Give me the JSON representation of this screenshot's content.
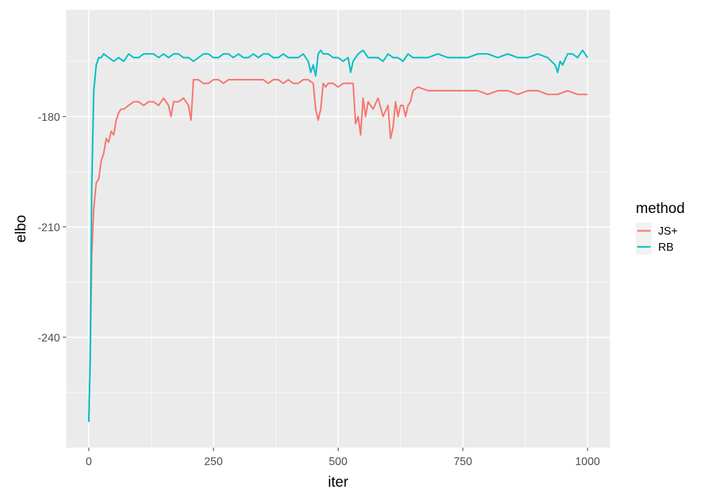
{
  "chart_data": {
    "type": "line",
    "xlabel": "iter",
    "ylabel": "elbo",
    "xlim": [
      -45,
      1045
    ],
    "ylim": [
      -270,
      -151
    ],
    "x_ticks": [
      0,
      250,
      500,
      750,
      1000
    ],
    "x_tick_labels": [
      "0",
      "250",
      "500",
      "750",
      "1000"
    ],
    "y_ticks": [
      -180,
      -210,
      -240
    ],
    "y_tick_labels": [
      "-180",
      "-210",
      "-240"
    ],
    "grid": true,
    "legend": {
      "title": "method",
      "position": "right"
    },
    "series": [
      {
        "name": "JS+",
        "color": "#F8766D",
        "x": [
          0,
          3,
          6,
          10,
          15,
          20,
          25,
          30,
          35,
          40,
          45,
          50,
          55,
          60,
          65,
          70,
          80,
          90,
          100,
          110,
          120,
          130,
          140,
          150,
          160,
          165,
          170,
          180,
          190,
          200,
          205,
          210,
          215,
          220,
          230,
          240,
          250,
          260,
          270,
          280,
          290,
          300,
          310,
          320,
          330,
          340,
          350,
          360,
          370,
          380,
          390,
          400,
          410,
          420,
          430,
          440,
          450,
          455,
          460,
          465,
          470,
          475,
          480,
          490,
          500,
          510,
          520,
          530,
          535,
          540,
          545,
          550,
          555,
          560,
          570,
          580,
          590,
          600,
          605,
          610,
          615,
          620,
          625,
          630,
          635,
          640,
          645,
          650,
          660,
          680,
          700,
          720,
          740,
          760,
          780,
          800,
          820,
          840,
          860,
          880,
          900,
          920,
          940,
          960,
          980,
          1000
        ],
        "values": [
          -263,
          -245,
          -218,
          -205,
          -198,
          -197,
          -192,
          -190,
          -186,
          -187,
          -184,
          -185,
          -181,
          -179,
          -178,
          -178,
          -177,
          -176,
          -176,
          -177,
          -176,
          -176,
          -177,
          -175,
          -177,
          -180,
          -176,
          -176,
          -175,
          -177,
          -181,
          -170,
          -170,
          -170,
          -171,
          -171,
          -170,
          -170,
          -171,
          -170,
          -170,
          -170,
          -170,
          -170,
          -170,
          -170,
          -170,
          -171,
          -170,
          -170,
          -171,
          -170,
          -171,
          -171,
          -170,
          -170,
          -171,
          -178,
          -181,
          -178,
          -171,
          -172,
          -171,
          -171,
          -172,
          -171,
          -171,
          -171,
          -182,
          -180,
          -185,
          -175,
          -180,
          -176,
          -178,
          -175,
          -180,
          -177,
          -186,
          -183,
          -176,
          -180,
          -177,
          -177,
          -180,
          -177,
          -176,
          -173,
          -172,
          -173,
          -173,
          -173,
          -173,
          -173,
          -173,
          -174,
          -173,
          -173,
          -174,
          -173,
          -173,
          -174,
          -174,
          -173,
          -174,
          -174
        ]
      },
      {
        "name": "RB",
        "color": "#00BFC4",
        "x": [
          0,
          3,
          6,
          10,
          15,
          20,
          25,
          30,
          40,
          50,
          60,
          70,
          80,
          90,
          100,
          110,
          120,
          130,
          140,
          150,
          160,
          170,
          180,
          190,
          200,
          210,
          220,
          230,
          240,
          250,
          260,
          270,
          280,
          290,
          300,
          310,
          320,
          330,
          340,
          350,
          360,
          370,
          380,
          390,
          400,
          410,
          420,
          430,
          440,
          445,
          450,
          455,
          460,
          465,
          470,
          480,
          490,
          500,
          510,
          520,
          525,
          530,
          540,
          550,
          560,
          570,
          580,
          590,
          600,
          610,
          620,
          630,
          640,
          650,
          660,
          680,
          700,
          720,
          740,
          760,
          780,
          800,
          820,
          840,
          860,
          880,
          900,
          920,
          935,
          940,
          945,
          950,
          960,
          970,
          980,
          990,
          1000
        ],
        "values": [
          -263,
          -245,
          -200,
          -173,
          -166,
          -164,
          -164,
          -163,
          -164,
          -165,
          -164,
          -165,
          -163,
          -164,
          -164,
          -163,
          -163,
          -163,
          -164,
          -163,
          -164,
          -163,
          -163,
          -164,
          -164,
          -165,
          -164,
          -163,
          -163,
          -164,
          -164,
          -163,
          -163,
          -164,
          -163,
          -164,
          -164,
          -163,
          -164,
          -163,
          -163,
          -164,
          -164,
          -163,
          -164,
          -164,
          -164,
          -163,
          -165,
          -168,
          -166,
          -169,
          -163,
          -162,
          -163,
          -163,
          -164,
          -164,
          -165,
          -164,
          -168,
          -165,
          -163,
          -162,
          -164,
          -164,
          -164,
          -165,
          -163,
          -164,
          -164,
          -165,
          -163,
          -164,
          -164,
          -164,
          -163,
          -164,
          -164,
          -164,
          -163,
          -163,
          -164,
          -163,
          -164,
          -164,
          -163,
          -164,
          -166,
          -168,
          -165,
          -166,
          -163,
          -163,
          -164,
          -162,
          -164
        ]
      }
    ]
  }
}
